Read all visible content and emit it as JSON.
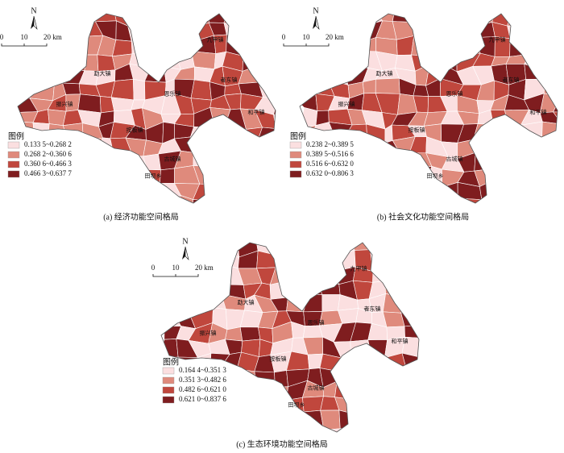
{
  "compass": "N",
  "scale_labels": [
    "0",
    "10",
    "20 km"
  ],
  "legend_colors": [
    "#fbdfe0",
    "#df8a7c",
    "#c0473d",
    "#7f1d1f"
  ],
  "places": [
    "勐大镇",
    "九甲镇",
    "者东镇",
    "恩乐镇",
    "和平镇",
    "振兴镇",
    "按板镇",
    "古城镇",
    "田坝乡"
  ],
  "panels": [
    {
      "caption": "(a)  经济功能空间格局",
      "legend_title": "图例",
      "legend_items": [
        "0.133 5~0.268 2",
        "0.268 2~0.360 6",
        "0.360 6~0.466 3",
        "0.466 3~0.637 7"
      ]
    },
    {
      "caption": "(b)  社会文化功能空间格局",
      "legend_title": "图例",
      "legend_items": [
        "0.238 2~0.389 5",
        "0.389 5~0.516 6",
        "0.516 6~0.632 0",
        "0.632 0~0.806 3"
      ]
    },
    {
      "caption": "(c)  生态环境功能空间格局",
      "legend_title": "图例",
      "legend_items": [
        "0.164 4~0.351 3",
        "0.351 3~0.482 6",
        "0.482 6~0.621 0",
        "0.621 0~0.837 6"
      ]
    }
  ]
}
